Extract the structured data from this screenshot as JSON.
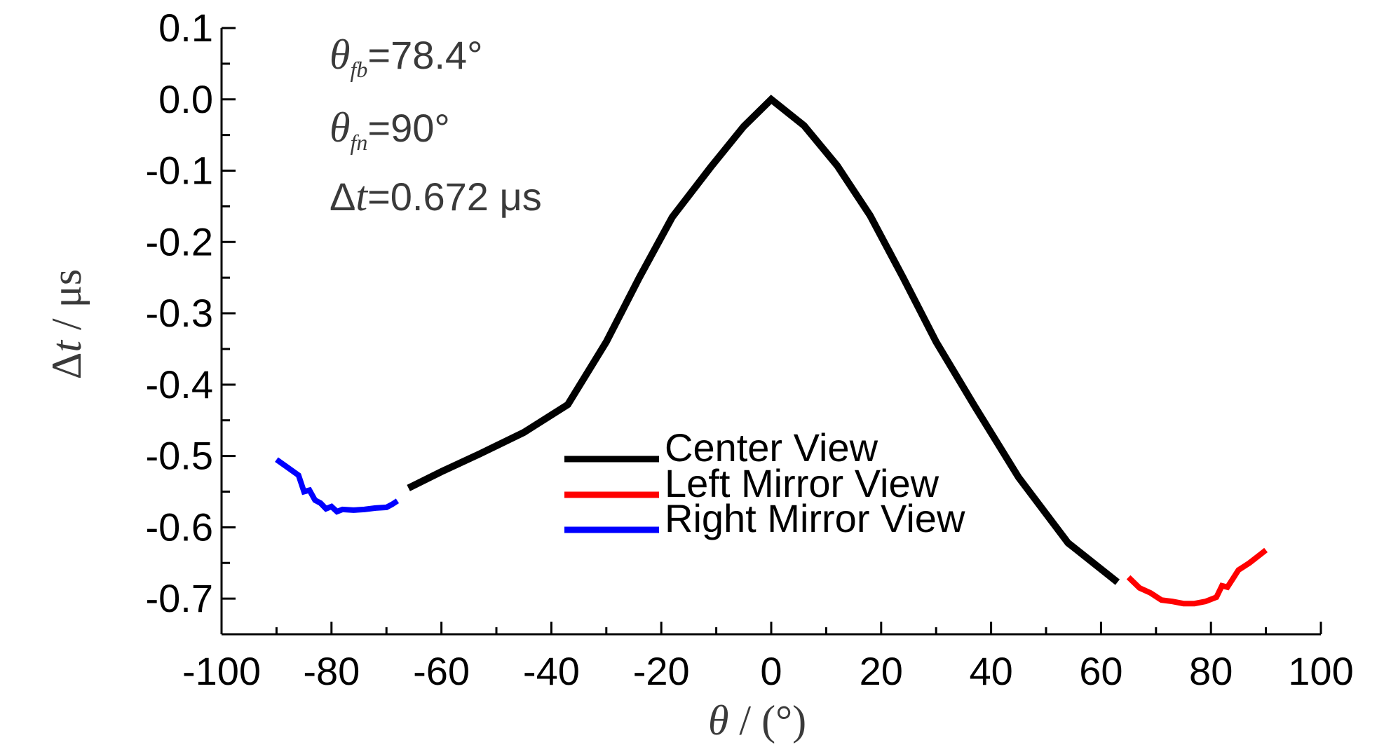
{
  "chart_data": {
    "type": "line",
    "xlim": [
      -100,
      100
    ],
    "ylim": [
      -0.75,
      0.1
    ],
    "x_ticks": [
      -100,
      -80,
      -60,
      -40,
      -20,
      0,
      20,
      40,
      60,
      80,
      100
    ],
    "x_tick_labels": [
      "-100",
      "-80",
      "-60",
      "-40",
      "-20",
      "0",
      "20",
      "40",
      "60",
      "80",
      "100"
    ],
    "y_ticks": [
      0.1,
      0.0,
      -0.1,
      -0.2,
      -0.3,
      -0.4,
      -0.5,
      -0.6,
      -0.7
    ],
    "y_tick_labels": [
      "0.1",
      "0.0",
      "-0.1",
      "-0.2",
      "-0.3",
      "-0.4",
      "-0.5",
      "-0.6",
      "-0.7"
    ],
    "xlabel": {
      "symbol": "θ",
      "rest": " / (°)"
    },
    "ylabel": {
      "symbol": "Δ",
      "var": "t",
      "rest": " / μs"
    },
    "annotations": [
      {
        "symbol": "θ",
        "sub": "fb",
        "text": "=78.4°"
      },
      {
        "symbol": "θ",
        "sub": "fn",
        "text": "=90°"
      },
      {
        "symbol": "Δ",
        "var": "t",
        "text": "=0.672 μs"
      }
    ],
    "legend_placement": "center-right",
    "series": [
      {
        "name": "Center View",
        "color": "#000000",
        "x": [
          -66,
          -60,
          -53,
          -45,
          -37,
          -30,
          -24,
          -18,
          -11,
          -5,
          0,
          6,
          12,
          18,
          24,
          30,
          37,
          45,
          54,
          63
        ],
        "y": [
          -0.545,
          -0.522,
          -0.497,
          -0.467,
          -0.428,
          -0.34,
          -0.25,
          -0.165,
          -0.095,
          -0.038,
          0.0,
          -0.037,
          -0.093,
          -0.163,
          -0.25,
          -0.34,
          -0.43,
          -0.53,
          -0.622,
          -0.677
        ]
      },
      {
        "name": "Left Mirror View",
        "color": "#ff0000",
        "x": [
          65,
          67,
          69,
          71,
          73,
          75,
          77,
          79,
          81,
          82,
          83,
          84,
          85,
          87,
          89,
          90
        ],
        "y": [
          -0.67,
          -0.685,
          -0.692,
          -0.702,
          -0.704,
          -0.707,
          -0.707,
          -0.704,
          -0.698,
          -0.682,
          -0.684,
          -0.672,
          -0.66,
          -0.65,
          -0.638,
          -0.632
        ]
      },
      {
        "name": "Right Mirror View",
        "color": "#0000ff",
        "x": [
          -90,
          -88,
          -86,
          -85,
          -84,
          -83,
          -82,
          -81,
          -80,
          -79,
          -78,
          -76,
          -74,
          -72,
          -70,
          -69,
          -68
        ],
        "y": [
          -0.505,
          -0.516,
          -0.527,
          -0.55,
          -0.548,
          -0.562,
          -0.566,
          -0.574,
          -0.571,
          -0.578,
          -0.575,
          -0.576,
          -0.575,
          -0.573,
          -0.572,
          -0.568,
          -0.563
        ]
      }
    ]
  }
}
